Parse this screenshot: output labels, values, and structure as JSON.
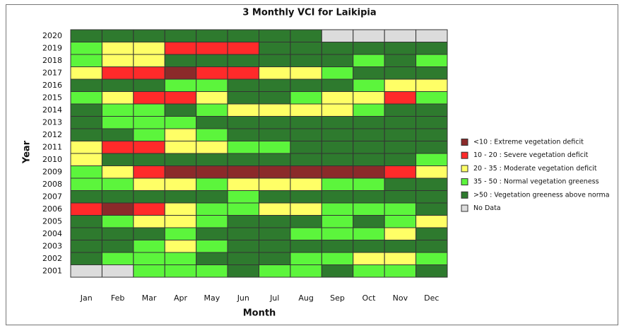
{
  "chart_data": {
    "type": "heatmap",
    "title": "3 Monthly VCI for Laikipia",
    "xlabel": "Month",
    "ylabel": "Year",
    "categories": [
      "Jan",
      "Feb",
      "Mar",
      "Apr",
      "May",
      "Jun",
      "Jul",
      "Aug",
      "Sep",
      "Oct",
      "Nov",
      "Dec"
    ],
    "years": [
      "2020",
      "2019",
      "2018",
      "2017",
      "2016",
      "2015",
      "2014",
      "2013",
      "2012",
      "2011",
      "2010",
      "2009",
      "2008",
      "2007",
      "2006",
      "2005",
      "2004",
      "2003",
      "2002",
      "2001"
    ],
    "legend": [
      {
        "label": "<10 : Extreme vegetation deficit",
        "color": "#8b2a2a"
      },
      {
        "label": "10 - 20 : Severe vegetation deficit",
        "color": "#ff2a2a"
      },
      {
        "label": "20 - 35 : Moderate vegetation deficit",
        "color": "#ffff66"
      },
      {
        "label": "35 - 50 : Normal vegetation greeness",
        "color": "#5cf53c"
      },
      {
        "label": ">50 : Vegetation greeness above norma",
        "color": "#2e7a2e"
      },
      {
        "label": "No Data",
        "color": "#dcdcdc"
      }
    ],
    "values": [
      [
        4,
        4,
        4,
        4,
        4,
        4,
        4,
        4,
        5,
        5,
        5,
        5
      ],
      [
        3,
        2,
        2,
        1,
        1,
        1,
        4,
        4,
        4,
        4,
        4,
        4
      ],
      [
        3,
        2,
        2,
        4,
        4,
        4,
        4,
        4,
        4,
        3,
        4,
        3
      ],
      [
        2,
        1,
        1,
        0,
        1,
        1,
        2,
        2,
        3,
        4,
        4,
        4
      ],
      [
        4,
        4,
        4,
        3,
        3,
        4,
        4,
        4,
        4,
        3,
        2,
        2
      ],
      [
        3,
        2,
        1,
        1,
        2,
        4,
        4,
        3,
        2,
        2,
        1,
        3
      ],
      [
        4,
        3,
        3,
        4,
        3,
        2,
        2,
        2,
        2,
        3,
        4,
        4
      ],
      [
        4,
        3,
        3,
        3,
        4,
        4,
        4,
        4,
        4,
        4,
        4,
        4
      ],
      [
        4,
        4,
        3,
        2,
        3,
        4,
        4,
        4,
        4,
        4,
        4,
        4
      ],
      [
        2,
        1,
        1,
        2,
        2,
        3,
        3,
        4,
        4,
        4,
        4,
        4
      ],
      [
        2,
        4,
        4,
        4,
        4,
        4,
        4,
        4,
        4,
        4,
        4,
        3
      ],
      [
        3,
        2,
        1,
        0,
        0,
        0,
        0,
        0,
        0,
        0,
        1,
        2
      ],
      [
        3,
        3,
        2,
        2,
        3,
        2,
        2,
        2,
        3,
        3,
        4,
        4
      ],
      [
        4,
        4,
        4,
        4,
        4,
        3,
        4,
        4,
        4,
        4,
        4,
        4
      ],
      [
        1,
        0,
        1,
        2,
        3,
        3,
        2,
        2,
        3,
        3,
        3,
        4
      ],
      [
        4,
        3,
        2,
        2,
        3,
        4,
        4,
        4,
        3,
        4,
        3,
        2
      ],
      [
        4,
        4,
        4,
        3,
        4,
        4,
        4,
        3,
        3,
        3,
        2,
        4
      ],
      [
        4,
        4,
        3,
        2,
        3,
        4,
        4,
        4,
        4,
        4,
        4,
        4
      ],
      [
        4,
        3,
        3,
        3,
        4,
        4,
        4,
        3,
        3,
        2,
        2,
        3
      ],
      [
        5,
        5,
        3,
        3,
        3,
        4,
        3,
        3,
        4,
        3,
        3,
        4
      ]
    ]
  }
}
